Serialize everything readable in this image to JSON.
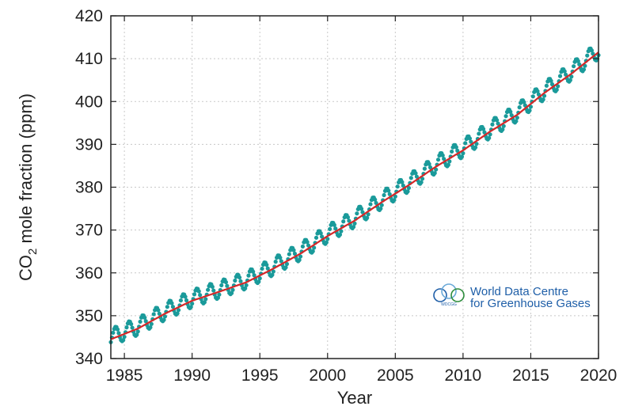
{
  "chart_data": {
    "type": "line",
    "title": "",
    "xlabel": "Year",
    "ylabel_main": "CO",
    "ylabel_sub": "2",
    "ylabel_rest": " mole fraction (ppm)",
    "xlim": [
      1984,
      2020
    ],
    "ylim": [
      340,
      420
    ],
    "x_ticks": [
      1985,
      1990,
      1995,
      2000,
      2005,
      2010,
      2015,
      2020
    ],
    "y_ticks": [
      340,
      350,
      360,
      370,
      380,
      390,
      400,
      410,
      420
    ],
    "grid": true,
    "legend": "none",
    "series": [
      {
        "kind": "monthly-points",
        "color": "#1a9a9a",
        "seasonal_amplitude": 4.0,
        "note_points_per_year": 12
      },
      {
        "kind": "deseasonalized-trend",
        "color": "#d62728",
        "x": [
          1984,
          1986,
          1988,
          1990,
          1992,
          1994,
          1996,
          1998,
          2000,
          2002,
          2004,
          2006,
          2008,
          2010,
          2012,
          2014,
          2016,
          2018,
          2020
        ],
        "values": [
          344.5,
          347.0,
          350.5,
          353.5,
          355.6,
          357.8,
          361.0,
          364.5,
          368.6,
          372.2,
          376.5,
          380.5,
          384.8,
          388.6,
          393.0,
          396.9,
          402.0,
          406.5,
          411.5
        ]
      }
    ]
  },
  "watermark": {
    "line1": "World Data Centre",
    "line2": "for Greenhouse Gases",
    "logo_text": "WDCGG",
    "color": "#1f5fa8"
  }
}
